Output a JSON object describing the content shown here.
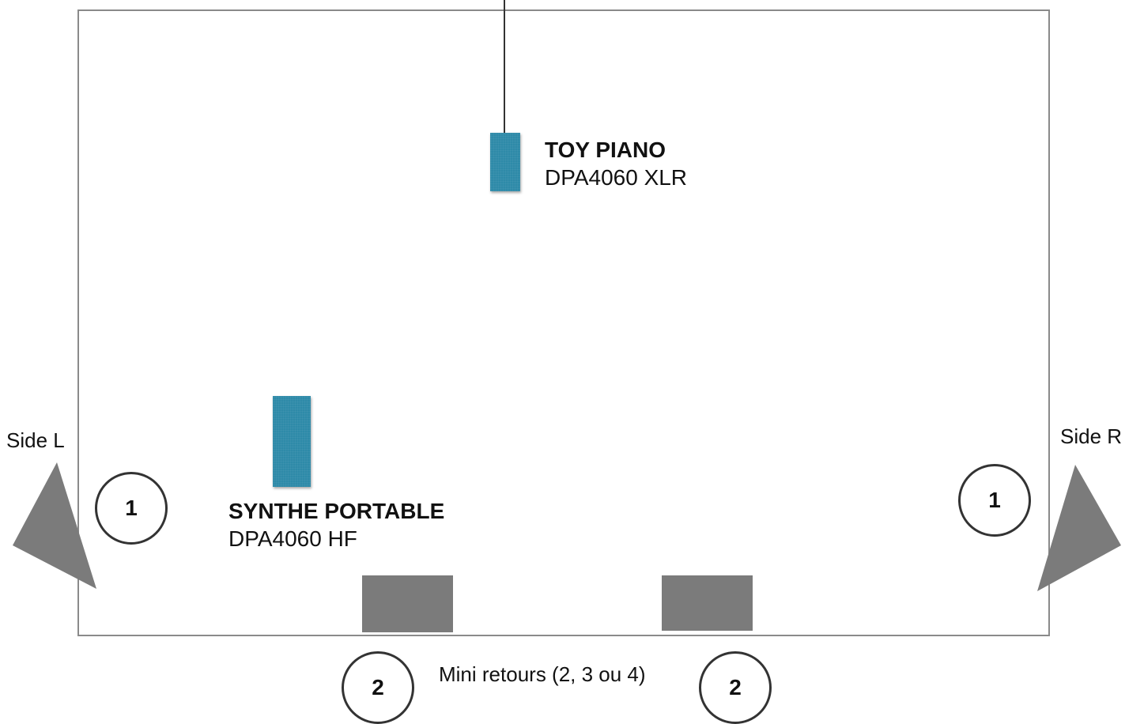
{
  "toy_piano": {
    "title": "TOY PIANO",
    "mic": "DPA4060 XLR"
  },
  "synthe": {
    "title": "SYNTHE PORTABLE",
    "mic": "DPA4060 HF"
  },
  "side_left": {
    "label": "Side L",
    "number": "1"
  },
  "side_right": {
    "label": "Side R",
    "number": "1"
  },
  "mini_retours": {
    "label": "Mini retours (2, 3 ou 4)",
    "number_left": "2",
    "number_right": "2"
  },
  "colors": {
    "mic": "#2e8aa8",
    "speaker": "#7b7b7b",
    "stage_border": "#8a8a8a"
  }
}
